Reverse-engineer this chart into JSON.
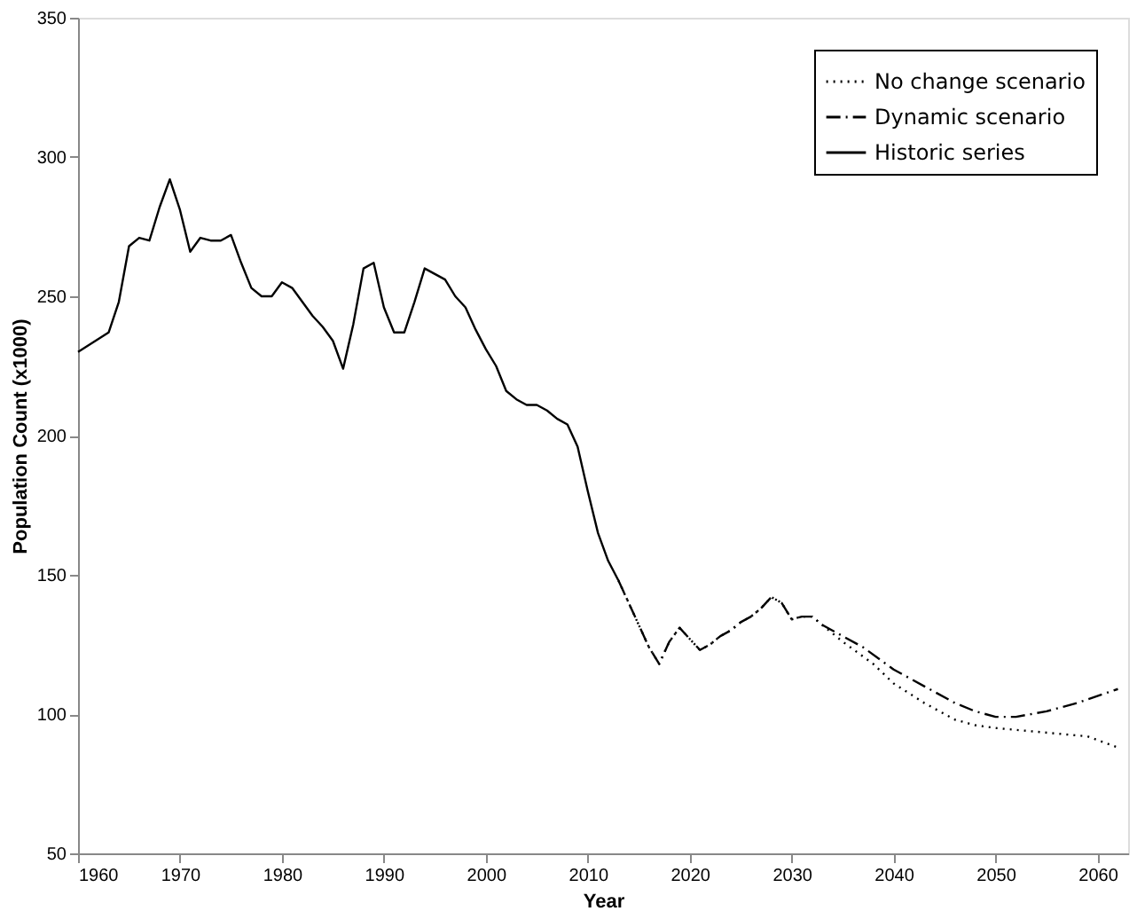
{
  "chart_data": {
    "type": "line",
    "xlabel": "Year",
    "ylabel": "Population Count (x1000)",
    "xlim": [
      1960,
      2063
    ],
    "xticks": [
      1960,
      1970,
      1980,
      1990,
      2000,
      2010,
      2020,
      2030,
      2040,
      2050,
      2060
    ],
    "ylim": [
      50,
      350
    ],
    "yticks": [
      50,
      100,
      150,
      200,
      250,
      300,
      350
    ],
    "grid": false,
    "legend": "top right",
    "marker": "none",
    "series": [
      {
        "name": "No change scenario",
        "color": "#000000",
        "line_style": "dotted",
        "x": [
          2013,
          2014,
          2015,
          2016,
          2017,
          2018,
          2019,
          2020,
          2021,
          2022,
          2023,
          2024,
          2025,
          2026,
          2027,
          2028,
          2029,
          2030,
          2031,
          2032,
          2033,
          2035,
          2038,
          2040,
          2043,
          2046,
          2048,
          2050,
          2053,
          2056,
          2059,
          2062
        ],
        "values": [
          148,
          140,
          132,
          124,
          118,
          126,
          131,
          127,
          123,
          125,
          128,
          130,
          133,
          135,
          138,
          142,
          140,
          134,
          135,
          135,
          132,
          126,
          118,
          111,
          104,
          98,
          96,
          95,
          94,
          93,
          92,
          88
        ]
      },
      {
        "name": "Dynamic scenario",
        "color": "#000000",
        "line_style": "dashdot",
        "x": [
          2013,
          2014,
          2015,
          2016,
          2017,
          2018,
          2019,
          2020,
          2021,
          2022,
          2023,
          2024,
          2025,
          2026,
          2027,
          2028,
          2029,
          2030,
          2031,
          2032,
          2033,
          2035,
          2037,
          2040,
          2043,
          2046,
          2048,
          2050,
          2052,
          2055,
          2058,
          2062
        ],
        "values": [
          148,
          140,
          132,
          124,
          118,
          126,
          131,
          127,
          123,
          125,
          128,
          130,
          133,
          135,
          138,
          142,
          140,
          134,
          135,
          135,
          132,
          128,
          124,
          116,
          110,
          104,
          101,
          99,
          99,
          101,
          104,
          109
        ]
      },
      {
        "name": "Historic series",
        "color": "#000000",
        "line_style": "solid",
        "x": [
          1960,
          1963,
          1964,
          1965,
          1966,
          1967,
          1968,
          1969,
          1970,
          1971,
          1972,
          1973,
          1974,
          1975,
          1976,
          1977,
          1978,
          1979,
          1980,
          1981,
          1982,
          1983,
          1984,
          1985,
          1986,
          1987,
          1988,
          1989,
          1990,
          1991,
          1992,
          1993,
          1994,
          1995,
          1996,
          1997,
          1998,
          1999,
          2000,
          2001,
          2002,
          2003,
          2004,
          2005,
          2006,
          2007,
          2008,
          2009,
          2010,
          2011,
          2012,
          2013
        ],
        "values": [
          230,
          237,
          248,
          268,
          271,
          270,
          282,
          292,
          281,
          266,
          271,
          270,
          270,
          272,
          262,
          253,
          250,
          250,
          255,
          253,
          248,
          243,
          239,
          234,
          224,
          240,
          260,
          262,
          246,
          237,
          237,
          248,
          260,
          258,
          256,
          250,
          246,
          238,
          231,
          225,
          216,
          213,
          211,
          211,
          209,
          206,
          204,
          196,
          180,
          165,
          155,
          148
        ]
      }
    ]
  }
}
